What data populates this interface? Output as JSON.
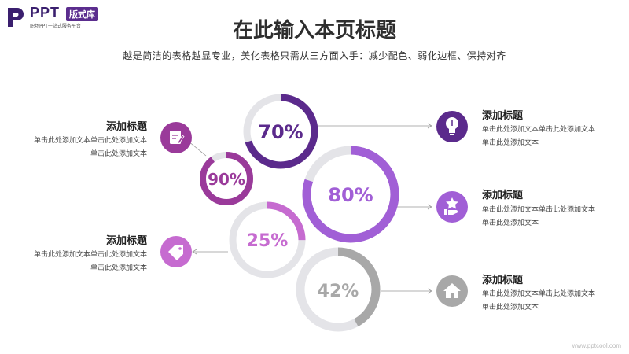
{
  "logo": {
    "brand": "PPT",
    "badge": "版式库",
    "tagline": "职场PPT一站式服务平台"
  },
  "title": "在此输入本页标题",
  "subtitle": "越是简洁的表格越显专业，美化表格只需从三方面入手：减少配色、弱化边框、保持对齐",
  "colors": {
    "dark_purple": "#5b2a8c",
    "mid_purple": "#9a3a9a",
    "light_purple": "#a15fd6",
    "pink_purple": "#c66bd0",
    "gray": "#a8a8a8",
    "track": "#e4e4e8"
  },
  "rings": [
    {
      "label": "70%",
      "value": 0.7,
      "color_key": "dark_purple"
    },
    {
      "label": "90%",
      "value": 0.9,
      "color_key": "mid_purple"
    },
    {
      "label": "80%",
      "value": 0.8,
      "color_key": "light_purple"
    },
    {
      "label": "25%",
      "value": 0.25,
      "color_key": "pink_purple"
    },
    {
      "label": "42%",
      "value": 0.42,
      "color_key": "gray"
    }
  ],
  "items": [
    {
      "title": "添加标题",
      "text": "单击此处添加文本单击此处添加文本单击此处添加文本",
      "icon": "edit-icon"
    },
    {
      "title": "添加标题",
      "text": "单击此处添加文本单击此处添加文本单击此处添加文本",
      "icon": "tag-icon"
    },
    {
      "title": "添加标题",
      "text": "单击此处添加文本单击此处添加文本单击此处添加文本",
      "icon": "lightbulb-icon"
    },
    {
      "title": "添加标题",
      "text": "单击此处添加文本单击此处添加文本单击此处添加文本",
      "icon": "hand-star-icon"
    },
    {
      "title": "添加标题",
      "text": "单击此处添加文本单击此处添加文本单击此处添加文本",
      "icon": "home-icon"
    }
  ],
  "watermark": "www.pptcool.com"
}
